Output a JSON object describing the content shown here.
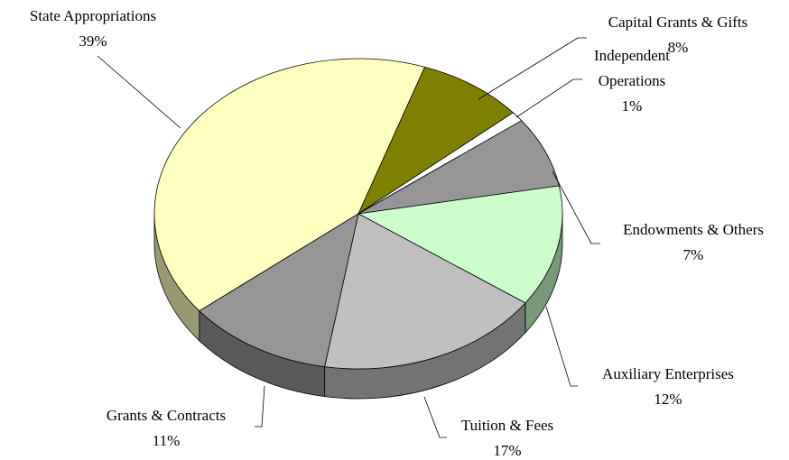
{
  "chart_data": {
    "type": "pie",
    "categories": [
      "State Appropriations",
      "Capital Grants & Gifts",
      "Independent Operations",
      "Endowments & Others",
      "Auxiliary Enterprises",
      "Tuition & Fees",
      "Grants & Contracts"
    ],
    "values": [
      39,
      8,
      1,
      7,
      12,
      17,
      11
    ],
    "value_labels": [
      "39%",
      "8%",
      "1%",
      "7%",
      "12%",
      "17%",
      "11%"
    ],
    "colors": [
      "#ffffc0",
      "#808000",
      "#ffffff",
      "#969696",
      "#ccffcc",
      "#c0c0c0",
      "#969696"
    ]
  }
}
